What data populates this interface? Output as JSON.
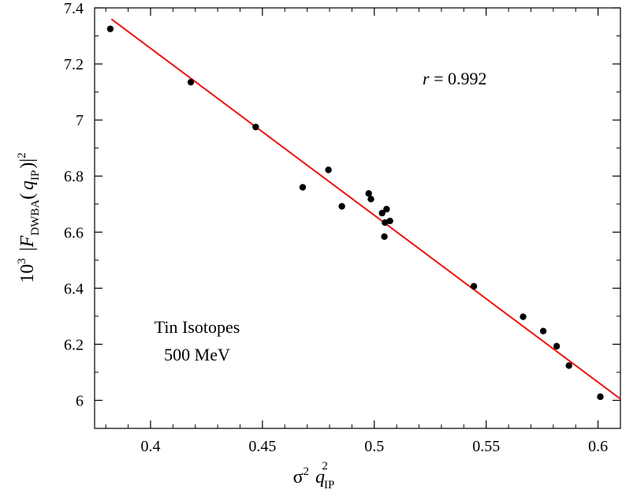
{
  "chart_data": {
    "type": "scatter",
    "title": "",
    "xlabel": {
      "base": "σ",
      "base_sup": "2",
      "var": "q",
      "var_sub": "IP",
      "var_sup": "2"
    },
    "ylabel": {
      "prefix": "10",
      "prefix_sup": "3",
      "open_bar": "|",
      "func": "F",
      "func_sub": "DWBA",
      "open_paren": "(",
      "var": "q",
      "var_sub": "IP",
      "close_paren": ")",
      "close_bar": "|",
      "close_sup": "2"
    },
    "xlim": [
      0.375,
      0.61
    ],
    "ylim": [
      5.9,
      7.4
    ],
    "x_ticks": [
      0.4,
      0.45,
      0.5,
      0.55,
      0.6
    ],
    "x_tick_labels": [
      "0.4",
      "0.45",
      "0.5",
      "0.55",
      "0.6"
    ],
    "y_ticks": [
      6,
      6.2,
      6.4,
      6.6,
      6.8,
      7,
      7.2,
      7.4
    ],
    "y_tick_labels": [
      "6",
      "6.2",
      "6.4",
      "6.6",
      "6.8",
      "7",
      "7.2",
      "7.4"
    ],
    "series": [
      {
        "name": "Tin isotopes",
        "color": "#000000",
        "points": [
          {
            "x": 0.382,
            "y": 7.325
          },
          {
            "x": 0.418,
            "y": 7.135
          },
          {
            "x": 0.447,
            "y": 6.975
          },
          {
            "x": 0.468,
            "y": 6.76
          },
          {
            "x": 0.4795,
            "y": 6.822
          },
          {
            "x": 0.4855,
            "y": 6.692
          },
          {
            "x": 0.4975,
            "y": 6.738
          },
          {
            "x": 0.4985,
            "y": 6.718
          },
          {
            "x": 0.5035,
            "y": 6.668
          },
          {
            "x": 0.5045,
            "y": 6.584
          },
          {
            "x": 0.5048,
            "y": 6.634
          },
          {
            "x": 0.5055,
            "y": 6.682
          },
          {
            "x": 0.507,
            "y": 6.64
          },
          {
            "x": 0.5445,
            "y": 6.407
          },
          {
            "x": 0.5665,
            "y": 6.298
          },
          {
            "x": 0.5755,
            "y": 6.247
          },
          {
            "x": 0.5815,
            "y": 6.193
          },
          {
            "x": 0.587,
            "y": 6.124
          },
          {
            "x": 0.601,
            "y": 6.013
          }
        ]
      }
    ],
    "fit_line": {
      "color": "#ee1111",
      "x0": 0.3825,
      "y0": 7.36,
      "x1": 0.61,
      "y1": 6.005
    },
    "annotations": {
      "r_label": "r",
      "r_value": " = 0.992",
      "dataset_line1": "Tin Isotopes",
      "dataset_line2": "500 MeV"
    }
  }
}
